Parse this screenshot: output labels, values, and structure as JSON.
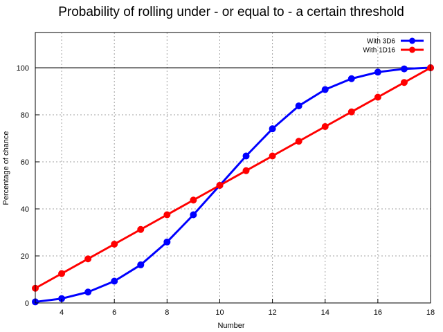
{
  "chart_data": {
    "type": "line",
    "title": "Probability of rolling under - or equal to - a certain threshold",
    "xlabel": "Number",
    "ylabel": "Percentage of chance",
    "xlim": [
      3,
      18
    ],
    "ylim": [
      0,
      115
    ],
    "x_ticks": [
      "4",
      "6",
      "8",
      "10",
      "12",
      "14",
      "16",
      "18"
    ],
    "y_ticks": [
      "0",
      "20",
      "40",
      "60",
      "80",
      "100"
    ],
    "grid": true,
    "reference_line": 100,
    "legend_position": "top-right",
    "x": [
      3,
      4,
      5,
      6,
      7,
      8,
      9,
      10,
      11,
      12,
      13,
      14,
      15,
      16,
      17,
      18
    ],
    "series": [
      {
        "name": "With 3D6",
        "color": "#0000ff",
        "values": [
          0.46,
          1.85,
          4.63,
          9.26,
          16.2,
          25.93,
          37.5,
          50.0,
          62.5,
          74.07,
          83.8,
          90.74,
          95.37,
          98.15,
          99.54,
          100.0
        ]
      },
      {
        "name": "With 1D16",
        "color": "#ff0000",
        "values": [
          6.25,
          12.5,
          18.75,
          25.0,
          31.25,
          37.5,
          43.75,
          50.0,
          56.25,
          62.5,
          68.75,
          75.0,
          81.25,
          87.5,
          93.75,
          100.0
        ]
      }
    ]
  }
}
